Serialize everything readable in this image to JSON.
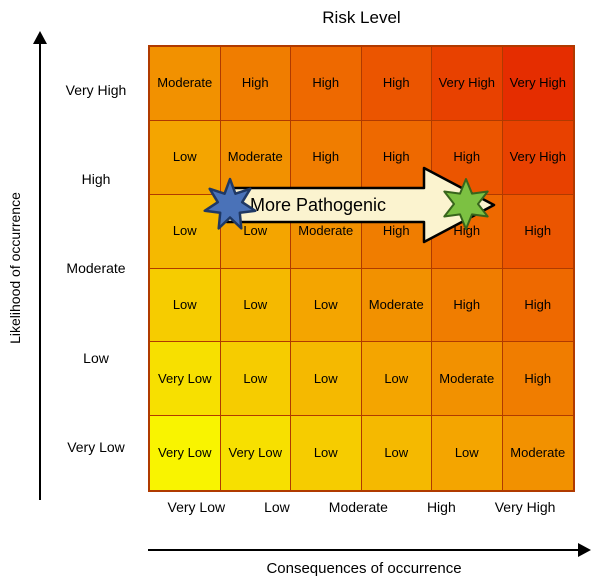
{
  "chart_data": {
    "type": "heatmap",
    "title": "Risk Level",
    "xlabel": "Consequences of occurrence",
    "ylabel": "Likelihood of occurrence",
    "x_categories": [
      "Very Low",
      "Low",
      "Moderate",
      "High",
      "Very High"
    ],
    "y_categories": [
      "Very High",
      "High",
      "Moderate",
      "Low",
      "Very Low"
    ],
    "grid_size": {
      "rows": 6,
      "cols": 6
    },
    "cells": [
      [
        "Moderate",
        "High",
        "High",
        "High",
        "Very High",
        "Very High"
      ],
      [
        "Low",
        "Moderate",
        "High",
        "High",
        "High",
        "Very High"
      ],
      [
        "Low",
        "Low",
        "Moderate",
        "High",
        "High",
        "High"
      ],
      [
        "Low",
        "Low",
        "Low",
        "Moderate",
        "High",
        "High"
      ],
      [
        "Very Low",
        "Low",
        "Low",
        "Low",
        "Moderate",
        "High"
      ],
      [
        "Very Low",
        "Very Low",
        "Low",
        "Low",
        "Low",
        "Moderate"
      ]
    ],
    "cell_colors": [
      [
        "#F29100",
        "#F07D00",
        "#EE6900",
        "#EB5500",
        "#E84100",
        "#E52D00"
      ],
      [
        "#F4A500",
        "#F29100",
        "#F07D00",
        "#EE6900",
        "#EB5500",
        "#E84100"
      ],
      [
        "#F5B900",
        "#F4A500",
        "#F29100",
        "#F07D00",
        "#EE6900",
        "#EB5500"
      ],
      [
        "#F6CC00",
        "#F5B900",
        "#F4A500",
        "#F29100",
        "#F07D00",
        "#EE6900"
      ],
      [
        "#F7E000",
        "#F6CC00",
        "#F5B900",
        "#F4A500",
        "#F29100",
        "#F07D00"
      ],
      [
        "#F9F400",
        "#F7E000",
        "#F6CC00",
        "#F5B900",
        "#F4A500",
        "#F29100"
      ]
    ],
    "grid_line_color": "#B03A00",
    "annotation": {
      "label": "More Pathogenic",
      "arrow_fill": "#FBF3CF",
      "arrow_stroke": "#000000",
      "start_star_fill": "#4A72B8",
      "start_star_stroke": "#1F3864",
      "end_star_fill": "#7CC142",
      "end_star_stroke": "#38651C"
    }
  }
}
